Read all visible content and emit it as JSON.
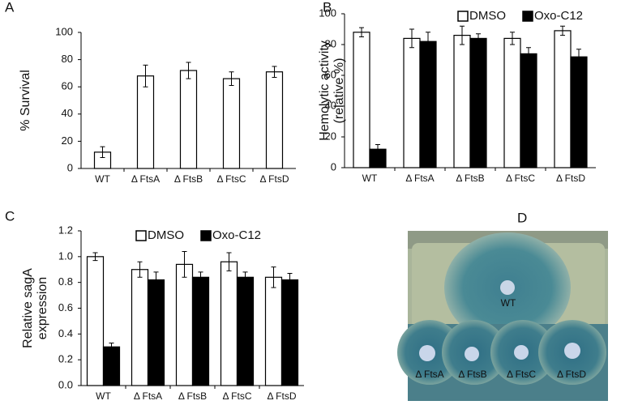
{
  "chart_data": [
    {
      "type": "bar",
      "panel_label": "A",
      "ylabel": [
        "% Survival"
      ],
      "categories": [
        "WT",
        "Δ FtsA",
        "Δ FtsB",
        "Δ FtsC",
        "Δ FtsD"
      ],
      "values": [
        12,
        68,
        72,
        66,
        71
      ],
      "errors": [
        4,
        8,
        6,
        5,
        4
      ],
      "color": "#ffffff",
      "ylim": [
        0,
        100
      ],
      "yticks": [
        0,
        20,
        40,
        60,
        80,
        100
      ]
    },
    {
      "type": "bar",
      "panel_label": "B",
      "ylabel": [
        "Hemolytic activity",
        "(relative %)"
      ],
      "categories": [
        "WT",
        "Δ FtsA",
        "Δ FtsB",
        "Δ FtsC",
        "Δ FtsD"
      ],
      "series": [
        {
          "name": "DMSO",
          "color": "#ffffff",
          "values": [
            88,
            84,
            86,
            84,
            89
          ],
          "errors": [
            3,
            6,
            6,
            4,
            3
          ]
        },
        {
          "name": "Oxo-C12",
          "color": "#000000",
          "values": [
            12,
            82,
            84,
            74,
            72
          ],
          "errors": [
            3,
            6,
            3,
            4,
            5
          ]
        }
      ],
      "ylim": [
        0,
        100
      ],
      "yticks": [
        0,
        20,
        40,
        60,
        80,
        100
      ]
    },
    {
      "type": "bar",
      "panel_label": "C",
      "ylabel": [
        "Relative sagA",
        "expression"
      ],
      "categories": [
        "WT",
        "Δ FtsA",
        "Δ FtsB",
        "Δ FtsC",
        "Δ FtsD"
      ],
      "series": [
        {
          "name": "DMSO",
          "color": "#ffffff",
          "values": [
            1.0,
            0.9,
            0.94,
            0.96,
            0.84
          ],
          "errors": [
            0.03,
            0.06,
            0.1,
            0.07,
            0.08
          ]
        },
        {
          "name": "Oxo-C12",
          "color": "#000000",
          "values": [
            0.3,
            0.82,
            0.84,
            0.84,
            0.82
          ],
          "errors": [
            0.03,
            0.06,
            0.04,
            0.04,
            0.05
          ]
        }
      ],
      "ylim": [
        0,
        1.2
      ],
      "yticks": [
        {
          "value": 0,
          "label": "0.0"
        },
        0.2,
        0.4,
        0.6,
        0.8,
        {
          "value": 1,
          "label": "1.0"
        },
        1.2
      ]
    }
  ],
  "image": {
    "panel_label": "D",
    "spot_labels": [
      "WT",
      "Δ FtsA",
      "Δ FtsB",
      "Δ FtsC",
      "Δ FtsD"
    ]
  }
}
